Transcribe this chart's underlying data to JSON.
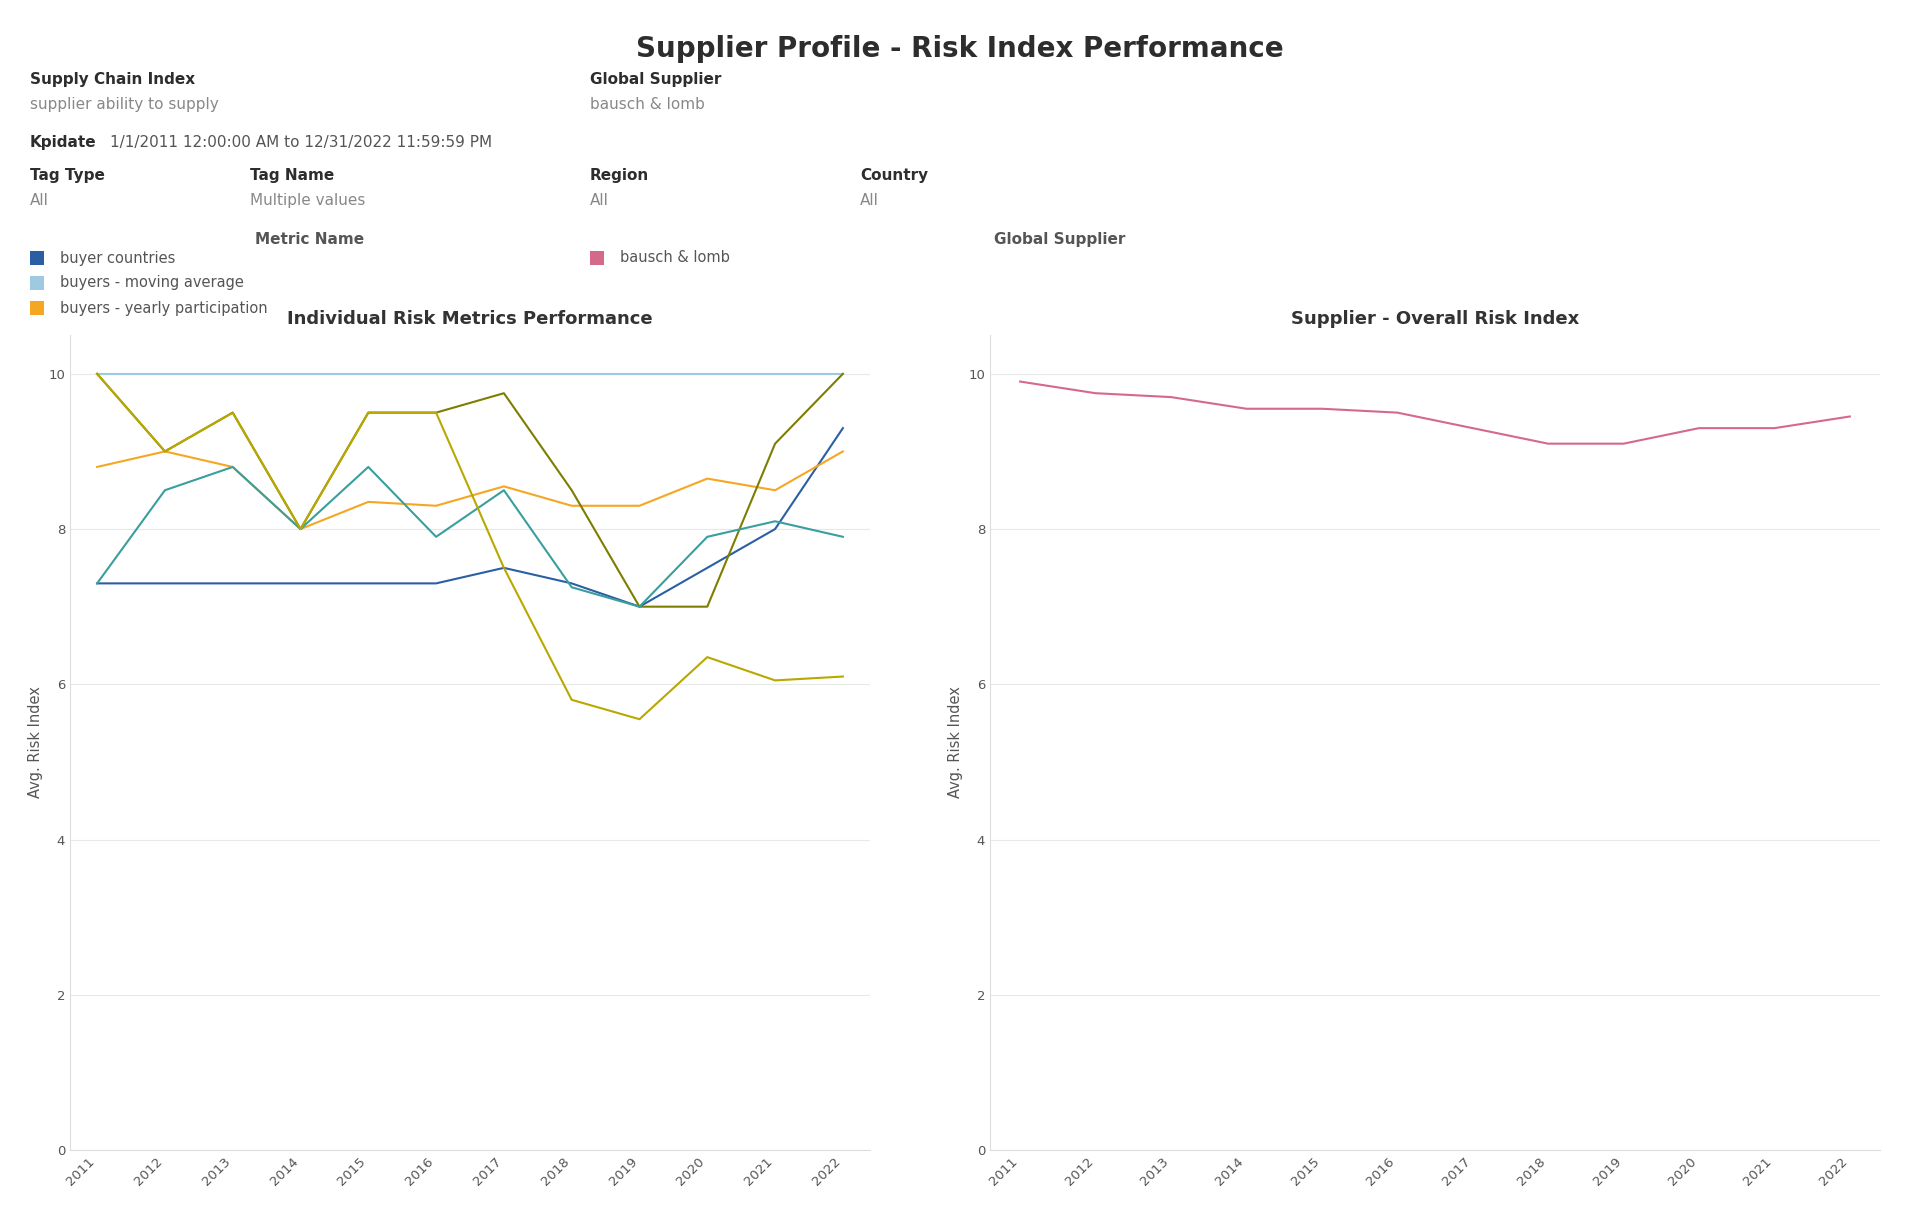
{
  "title": "Supplier Profile - Risk Index Performance",
  "bg_color": "#ffffff",
  "header": {
    "supply_chain_index_label": "Supply Chain Index",
    "supply_chain_index_value": "supplier ability to supply",
    "global_supplier_label": "Global Supplier",
    "global_supplier_value": "bausch & lomb",
    "kpidate_label": "Kpidate",
    "kpidate_value": "1/1/2011 12:00:00 AM to 12/31/2022 11:59:59 PM",
    "tag_type_label": "Tag Type",
    "tag_type_value": "All",
    "tag_name_label": "Tag Name",
    "tag_name_value": "Multiple values",
    "region_label": "Region",
    "region_value": "All",
    "country_label": "Country",
    "country_value": "All"
  },
  "legend_left": {
    "title": "Metric Name",
    "entries": [
      {
        "label": "buyer countries",
        "color": "#2b5fa3"
      },
      {
        "label": "buyers - moving average",
        "color": "#9ecae1"
      },
      {
        "label": "buyers - yearly participation",
        "color": "#f5a623"
      }
    ]
  },
  "legend_right": {
    "title": "Global Supplier",
    "entries": [
      {
        "label": "bausch & lomb",
        "color": "#d4698a"
      }
    ]
  },
  "left_chart": {
    "title": "Individual Risk Metrics Performance",
    "ylabel": "Avg. Risk Index",
    "years": [
      2011,
      2012,
      2013,
      2014,
      2015,
      2016,
      2017,
      2018,
      2019,
      2020,
      2021,
      2022
    ],
    "ylim": [
      0,
      10.5
    ],
    "yticks": [
      0,
      2,
      4,
      6,
      8,
      10
    ],
    "series": [
      {
        "name": "buyer countries",
        "color": "#2b5fa3",
        "values": [
          7.3,
          7.3,
          7.3,
          7.3,
          7.3,
          7.3,
          7.5,
          7.3,
          7.0,
          7.5,
          8.0,
          9.3
        ],
        "linewidth": 1.5
      },
      {
        "name": "buyers - moving average",
        "color": "#9ecae1",
        "values": [
          10.0,
          10.0,
          10.0,
          10.0,
          10.0,
          10.0,
          10.0,
          10.0,
          10.0,
          10.0,
          10.0,
          10.0
        ],
        "linewidth": 1.5
      },
      {
        "name": "buyers - yearly participation",
        "color": "#f5a623",
        "values": [
          8.8,
          9.0,
          8.8,
          8.0,
          8.35,
          8.3,
          8.55,
          8.3,
          8.3,
          8.65,
          8.5,
          9.0
        ],
        "linewidth": 1.5
      },
      {
        "name": "olive_series",
        "color": "#7d7d00",
        "values": [
          10.0,
          9.0,
          9.5,
          8.0,
          9.5,
          9.5,
          9.75,
          8.5,
          7.0,
          7.0,
          9.1,
          10.0
        ],
        "linewidth": 1.5
      },
      {
        "name": "teal_series",
        "color": "#3a9e9e",
        "values": [
          7.3,
          8.5,
          8.8,
          8.0,
          8.8,
          7.9,
          8.5,
          7.25,
          7.0,
          7.9,
          8.1,
          7.9
        ],
        "linewidth": 1.5
      },
      {
        "name": "yellow_series",
        "color": "#b8a800",
        "values": [
          10.0,
          9.0,
          9.5,
          8.0,
          9.5,
          9.5,
          7.5,
          5.8,
          5.55,
          6.35,
          6.05,
          6.1
        ],
        "linewidth": 1.5
      }
    ]
  },
  "right_chart": {
    "title": "Supplier - Overall Risk Index",
    "ylabel": "Avg. Risk Index",
    "years": [
      2011,
      2012,
      2013,
      2014,
      2015,
      2016,
      2017,
      2018,
      2019,
      2020,
      2021,
      2022
    ],
    "ylim": [
      0,
      10.5
    ],
    "yticks": [
      0,
      2,
      4,
      6,
      8,
      10
    ],
    "series": [
      {
        "name": "bausch & lomb",
        "color": "#d4698a",
        "values": [
          9.9,
          9.75,
          9.7,
          9.55,
          9.55,
          9.5,
          9.3,
          9.1,
          9.1,
          9.3,
          9.3,
          9.45
        ],
        "linewidth": 1.5
      }
    ]
  }
}
